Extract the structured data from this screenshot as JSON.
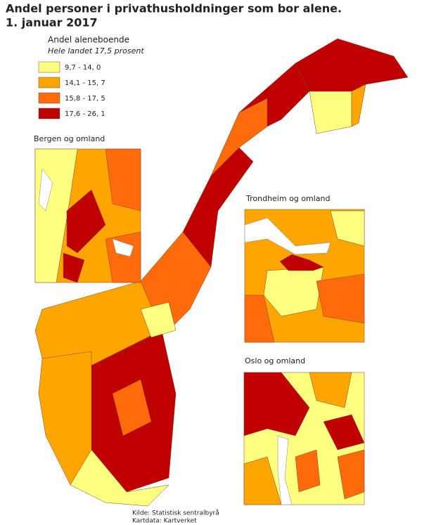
{
  "title": [
    "Andel personer i privathusholdninger som bor alene.",
    "1. januar 2017"
  ],
  "legend": {
    "title": "Andel aleneboende",
    "subtitle": "Hele landet 17,5 prosent",
    "items": [
      {
        "label": "9,7 - 14, 0",
        "color": "#ffff80"
      },
      {
        "label": "14,1 - 15, 7",
        "color": "#ffa500"
      },
      {
        "label": "15,8 - 17, 5",
        "color": "#ff6a0a"
      },
      {
        "label": "17,6 - 26, 1",
        "color": "#c00000"
      }
    ]
  },
  "insets": [
    {
      "label": "Bergen og omland"
    },
    {
      "label": "Trondheim og omland"
    },
    {
      "label": "Oslo og omland"
    }
  ],
  "source": [
    "Kilde: Statistisk sentralbyrå",
    "Kartdata: Kartverket"
  ]
}
